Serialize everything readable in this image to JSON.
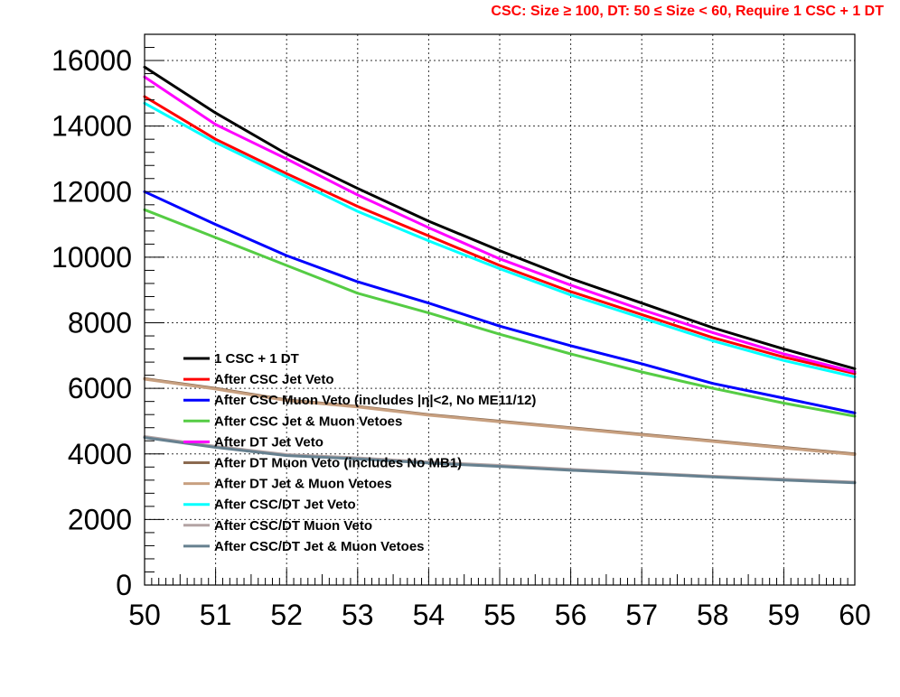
{
  "chart_data": {
    "type": "line",
    "title": "CSC: Size  ≥ 100, DT: 50  ≤ Size < 60, Require 1 CSC + 1 DT",
    "xlabel": "",
    "ylabel": "",
    "xlim": [
      50,
      60
    ],
    "ylim": [
      0,
      16800
    ],
    "xticks": [
      "50",
      "51",
      "52",
      "53",
      "54",
      "55",
      "56",
      "57",
      "58",
      "59",
      "60"
    ],
    "yticks": [
      "0",
      "2000",
      "4000",
      "6000",
      "8000",
      "10000",
      "12000",
      "14000",
      "16000"
    ],
    "grid": true,
    "legend_position": "bottom-left",
    "x": [
      50,
      51,
      52,
      53,
      54,
      55,
      56,
      57,
      58,
      59,
      60
    ],
    "series": [
      {
        "name": "1 CSC + 1 DT",
        "color": "#000000",
        "values": [
          15800,
          14400,
          13150,
          12100,
          11100,
          10200,
          9350,
          8600,
          7850,
          7200,
          6600
        ]
      },
      {
        "name": "After CSC Jet Veto",
        "color": "#ff0000",
        "values": [
          14900,
          13600,
          12550,
          11550,
          10650,
          9750,
          8950,
          8250,
          7550,
          6950,
          6450
        ]
      },
      {
        "name": "After CSC Muon Veto (includes |η|<2, No ME11/12)",
        "color": "#0000ff",
        "values": [
          12000,
          11000,
          10050,
          9250,
          8600,
          7900,
          7300,
          6750,
          6150,
          5700,
          5250
        ]
      },
      {
        "name": "After CSC Jet & Muon Vetoes",
        "color": "#55cc44",
        "values": [
          11450,
          10600,
          9750,
          8900,
          8300,
          7650,
          7050,
          6500,
          6000,
          5550,
          5150
        ]
      },
      {
        "name": "After DT Jet Veto",
        "color": "#ff00ff",
        "values": [
          15500,
          14050,
          13000,
          11900,
          10900,
          9950,
          9150,
          8400,
          7700,
          7050,
          6500
        ]
      },
      {
        "name": "After DT Muon Veto (includes No MB1)",
        "color": "#8b6a50",
        "values": [
          6300,
          6000,
          5650,
          5450,
          5200,
          5000,
          4800,
          4600,
          4400,
          4200,
          4000
        ]
      },
      {
        "name": "After DT Jet & Muon Vetoes",
        "color": "#c8a080",
        "values": [
          6280,
          5980,
          5630,
          5430,
          5180,
          4980,
          4780,
          4580,
          4380,
          4180,
          3980
        ]
      },
      {
        "name": "After CSC/DT Jet Veto",
        "color": "#00ffff",
        "values": [
          14700,
          13500,
          12450,
          11400,
          10500,
          9650,
          8850,
          8150,
          7450,
          6850,
          6350
        ]
      },
      {
        "name": "After CSC/DT Muon Veto",
        "color": "#b4a4a4",
        "values": [
          4530,
          4230,
          3980,
          3880,
          3750,
          3650,
          3530,
          3420,
          3320,
          3230,
          3140
        ]
      },
      {
        "name": "After CSC/DT Jet & Muon Vetoes",
        "color": "#66808f",
        "values": [
          4500,
          4200,
          3950,
          3850,
          3720,
          3620,
          3500,
          3400,
          3300,
          3200,
          3120
        ]
      }
    ]
  }
}
